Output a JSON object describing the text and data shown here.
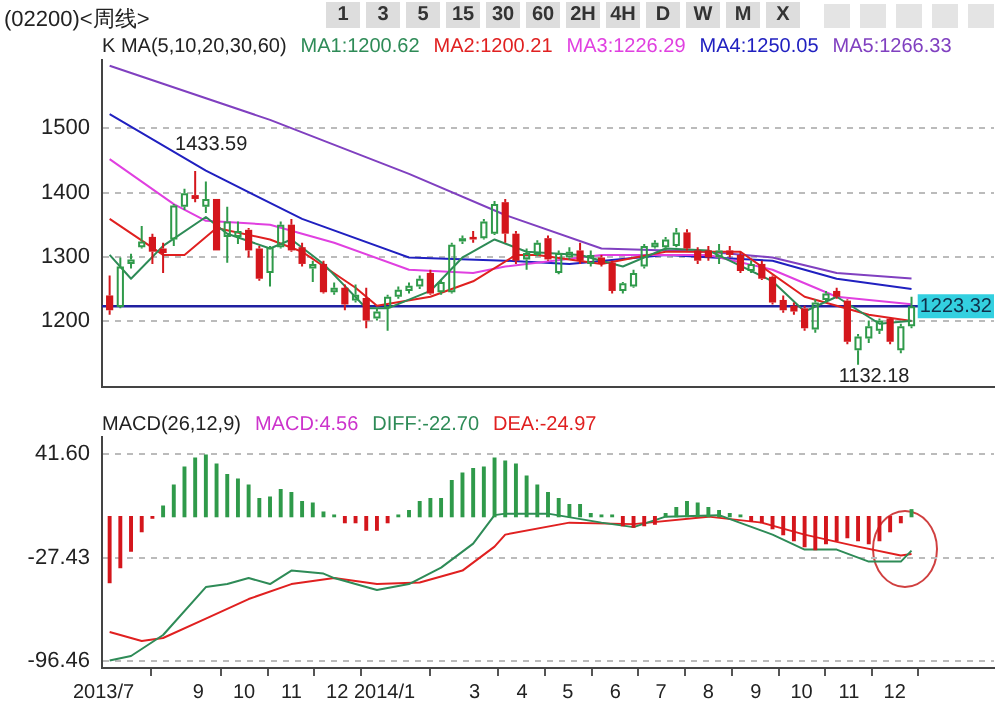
{
  "chart_data": [
    {
      "type": "candlestick",
      "title": "(02200)<周线>",
      "legend_title": "K MA(5,10,20,30,60)",
      "legend": "top",
      "grid": "y",
      "tick_labels": "y",
      "annotations": [
        "1",
        "3",
        "5",
        "15",
        "30",
        "60",
        "2H",
        "4H",
        "D",
        "W",
        "M",
        "X",
        {
          "text": "1433.59",
          "x": "2013-08-30",
          "y": 1433.59
        },
        {
          "text": "1132.18",
          "x": "2014-11-07",
          "y": 1132.18
        }
      ],
      "xlim": [
        "2013-06-30",
        "2015-02-04"
      ],
      "ylim": [
        1098,
        1606
      ],
      "yticks": [
        1200,
        1300,
        1400,
        1500
      ],
      "ref_lines": [
        {
          "axis": "y",
          "value": 1223.32,
          "label": "1223.32",
          "color": "#2020a0"
        }
      ],
      "x": [
        "2013-07-05",
        "2013-07-12",
        "2013-07-19",
        "2013-07-26",
        "2013-08-02",
        "2013-08-09",
        "2013-08-16",
        "2013-08-23",
        "2013-08-30",
        "2013-09-06",
        "2013-09-13",
        "2013-09-20",
        "2013-09-27",
        "2013-10-04",
        "2013-10-11",
        "2013-10-18",
        "2013-10-25",
        "2013-11-01",
        "2013-11-08",
        "2013-11-15",
        "2013-11-22",
        "2013-11-29",
        "2013-12-06",
        "2013-12-13",
        "2013-12-20",
        "2013-12-27",
        "2014-01-03",
        "2014-01-10",
        "2014-01-17",
        "2014-01-24",
        "2014-01-31",
        "2014-02-07",
        "2014-02-14",
        "2014-02-21",
        "2014-02-28",
        "2014-03-07",
        "2014-03-14",
        "2014-03-21",
        "2014-03-28",
        "2014-04-04",
        "2014-04-11",
        "2014-04-18",
        "2014-04-25",
        "2014-05-02",
        "2014-05-09",
        "2014-05-16",
        "2014-05-23",
        "2014-05-30",
        "2014-06-06",
        "2014-06-13",
        "2014-06-20",
        "2014-06-27",
        "2014-07-04",
        "2014-07-11",
        "2014-07-18",
        "2014-07-25",
        "2014-08-01",
        "2014-08-08",
        "2014-08-15",
        "2014-08-22",
        "2014-08-29",
        "2014-09-05",
        "2014-09-12",
        "2014-09-19",
        "2014-09-26",
        "2014-10-03",
        "2014-10-10",
        "2014-10-17",
        "2014-10-24",
        "2014-10-31",
        "2014-11-07",
        "2014-11-14",
        "2014-11-21",
        "2014-11-28",
        "2014-12-05",
        "2014-12-12"
      ],
      "ohlc": [
        [
          1240,
          1271,
          1210,
          1217
        ],
        [
          1222,
          1299,
          1220,
          1285
        ],
        [
          1289,
          1305,
          1282,
          1296
        ],
        [
          1315,
          1348,
          1313,
          1324
        ],
        [
          1331,
          1336,
          1289,
          1308
        ],
        [
          1313,
          1322,
          1275,
          1306
        ],
        [
          1327,
          1382,
          1317,
          1380
        ],
        [
          1378,
          1406,
          1373,
          1399
        ],
        [
          1396,
          1433.59,
          1385,
          1390
        ],
        [
          1378,
          1417,
          1368,
          1390
        ],
        [
          1390,
          1390,
          1310,
          1310
        ],
        [
          1331,
          1378,
          1291,
          1355
        ],
        [
          1331,
          1355,
          1320,
          1340
        ],
        [
          1342,
          1345,
          1299,
          1310
        ],
        [
          1313,
          1317,
          1263,
          1266
        ],
        [
          1275,
          1317,
          1254,
          1315
        ],
        [
          1315,
          1355,
          1313,
          1350
        ],
        [
          1350,
          1359,
          1308,
          1310
        ],
        [
          1315,
          1322,
          1285,
          1289
        ],
        [
          1282,
          1294,
          1261,
          1289
        ],
        [
          1289,
          1294,
          1243,
          1245
        ],
        [
          1245,
          1260,
          1241,
          1252
        ],
        [
          1252,
          1257,
          1217,
          1226
        ],
        [
          1232,
          1257,
          1229,
          1241
        ],
        [
          1236,
          1252,
          1189,
          1201
        ],
        [
          1204,
          1220,
          1201,
          1215
        ],
        [
          1220,
          1241,
          1185,
          1238
        ],
        [
          1238,
          1254,
          1235,
          1249
        ],
        [
          1247,
          1260,
          1243,
          1255
        ],
        [
          1254,
          1271,
          1250,
          1266
        ],
        [
          1275,
          1280,
          1241,
          1243
        ],
        [
          1245,
          1264,
          1241,
          1261
        ],
        [
          1245,
          1322,
          1243,
          1319
        ],
        [
          1324,
          1333,
          1320,
          1329
        ],
        [
          1331,
          1340,
          1322,
          1327
        ],
        [
          1329,
          1359,
          1327,
          1355
        ],
        [
          1336,
          1387,
          1334,
          1382
        ],
        [
          1385,
          1390,
          1322,
          1336
        ],
        [
          1336,
          1340,
          1289,
          1294
        ],
        [
          1296,
          1313,
          1280,
          1306
        ],
        [
          1303,
          1326,
          1301,
          1322
        ],
        [
          1329,
          1333,
          1294,
          1296
        ],
        [
          1275,
          1310,
          1273,
          1306
        ],
        [
          1299,
          1315,
          1296,
          1308
        ],
        [
          1310,
          1322,
          1289,
          1294
        ],
        [
          1289,
          1310,
          1285,
          1303
        ],
        [
          1299,
          1303,
          1285,
          1289
        ],
        [
          1291,
          1294,
          1243,
          1247
        ],
        [
          1247,
          1261,
          1243,
          1259
        ],
        [
          1254,
          1280,
          1252,
          1275
        ],
        [
          1285,
          1320,
          1282,
          1317
        ],
        [
          1315,
          1326,
          1313,
          1322
        ],
        [
          1315,
          1331,
          1310,
          1327
        ],
        [
          1317,
          1345,
          1315,
          1338
        ],
        [
          1338,
          1343,
          1310,
          1313
        ],
        [
          1310,
          1315,
          1289,
          1294
        ],
        [
          1310,
          1317,
          1294,
          1299
        ],
        [
          1299,
          1320,
          1289,
          1310
        ],
        [
          1310,
          1317,
          1299,
          1303
        ],
        [
          1303,
          1308,
          1275,
          1278
        ],
        [
          1278,
          1294,
          1275,
          1289
        ],
        [
          1289,
          1294,
          1264,
          1266
        ],
        [
          1269,
          1271,
          1226,
          1229
        ],
        [
          1233,
          1240,
          1213,
          1217
        ],
        [
          1224,
          1229,
          1210,
          1215
        ],
        [
          1220,
          1224,
          1185,
          1189
        ],
        [
          1187,
          1234,
          1182,
          1229
        ],
        [
          1233,
          1247,
          1229,
          1243
        ],
        [
          1247,
          1252,
          1235,
          1238
        ],
        [
          1232,
          1234,
          1164,
          1168
        ],
        [
          1155,
          1180,
          1132.18,
          1176
        ],
        [
          1173,
          1201,
          1166,
          1192
        ],
        [
          1185,
          1204,
          1180,
          1201
        ],
        [
          1204,
          1206,
          1164,
          1168
        ],
        [
          1155,
          1196,
          1150,
          1192
        ],
        [
          1192,
          1238,
          1189,
          1223.32
        ]
      ],
      "colors": [
        "#d4161c",
        "#2f9a4a",
        "#2f9a4a",
        "#2f9a4a",
        "#d4161c",
        "#d4161c",
        "#2f9a4a",
        "#2f9a4a",
        "#d4161c",
        "#2f9a4a",
        "#d4161c",
        "#2f9a4a",
        "#2f9a4a",
        "#d4161c",
        "#d4161c",
        "#2f9a4a",
        "#2f9a4a",
        "#d4161c",
        "#d4161c",
        "#2f9a4a",
        "#d4161c",
        "#2f9a4a",
        "#d4161c",
        "#2f9a4a",
        "#d4161c",
        "#2f9a4a",
        "#2f9a4a",
        "#2f9a4a",
        "#2f9a4a",
        "#2f9a4a",
        "#d4161c",
        "#2f9a4a",
        "#2f9a4a",
        "#2f9a4a",
        "#d4161c",
        "#2f9a4a",
        "#2f9a4a",
        "#d4161c",
        "#d4161c",
        "#2f9a4a",
        "#2f9a4a",
        "#d4161c",
        "#2f9a4a",
        "#2f9a4a",
        "#d4161c",
        "#2f9a4a",
        "#d4161c",
        "#d4161c",
        "#2f9a4a",
        "#2f9a4a",
        "#2f9a4a",
        "#2f9a4a",
        "#2f9a4a",
        "#2f9a4a",
        "#d4161c",
        "#d4161c",
        "#d4161c",
        "#2f9a4a",
        "#d4161c",
        "#d4161c",
        "#2f9a4a",
        "#d4161c",
        "#d4161c",
        "#d4161c",
        "#d4161c",
        "#d4161c",
        "#2f9a4a",
        "#2f9a4a",
        "#d4161c",
        "#d4161c",
        "#2f9a4a",
        "#2f9a4a",
        "#2f9a4a",
        "#d4161c",
        "#2f9a4a",
        "#2f9a4a"
      ],
      "series": [
        {
          "name": "MA1:1200.62",
          "type": "line",
          "color": "#2e8b57",
          "x": [
            "2013-07-05",
            "2013-07-19",
            "2013-08-09",
            "2013-09-06",
            "2013-09-20",
            "2013-10-18",
            "2013-11-01",
            "2013-11-22",
            "2013-12-20",
            "2014-01-03",
            "2014-01-31",
            "2014-02-21",
            "2014-03-14",
            "2014-04-04",
            "2014-05-09",
            "2014-06-06",
            "2014-07-04",
            "2014-08-01",
            "2014-09-12",
            "2014-10-03",
            "2014-10-24",
            "2014-11-21",
            "2014-12-12"
          ],
          "values": [
            1303,
            1266,
            1317,
            1362,
            1336,
            1313,
            1327,
            1289,
            1220,
            1220,
            1247,
            1299,
            1327,
            1308,
            1303,
            1285,
            1313,
            1310,
            1262,
            1215,
            1238,
            1196,
            1200.62
          ]
        },
        {
          "name": "MA2:1200.21",
          "type": "line",
          "color": "#e02020",
          "x": [
            "2013-07-05",
            "2013-08-09",
            "2013-08-23",
            "2013-09-13",
            "2013-10-18",
            "2013-11-08",
            "2013-12-13",
            "2013-12-27",
            "2014-01-31",
            "2014-02-28",
            "2014-03-28",
            "2014-04-11",
            "2014-05-23",
            "2014-07-04",
            "2014-08-22",
            "2014-10-03",
            "2014-11-14",
            "2014-12-12"
          ],
          "values": [
            1359,
            1303,
            1303,
            1345,
            1327,
            1308,
            1252,
            1224,
            1238,
            1262,
            1303,
            1303,
            1289,
            1308,
            1308,
            1238,
            1210,
            1200.21
          ]
        },
        {
          "name": "MA3:1226.29",
          "type": "line",
          "color": "#e040e0",
          "x": [
            "2013-07-05",
            "2013-08-16",
            "2013-09-06",
            "2013-10-18",
            "2013-11-29",
            "2014-01-17",
            "2014-02-28",
            "2014-03-21",
            "2014-05-23",
            "2014-08-01",
            "2014-09-12",
            "2014-10-24",
            "2014-12-12"
          ],
          "values": [
            1452,
            1382,
            1356,
            1350,
            1322,
            1280,
            1275,
            1285,
            1303,
            1303,
            1280,
            1238,
            1226.29
          ]
        },
        {
          "name": "MA4:1250.05",
          "type": "line",
          "color": "#2020c0",
          "x": [
            "2013-07-05",
            "2013-09-06",
            "2013-11-08",
            "2014-01-17",
            "2014-03-21",
            "2014-05-02",
            "2014-07-04",
            "2014-09-12",
            "2014-10-24",
            "2014-12-12"
          ],
          "values": [
            1522,
            1434,
            1359,
            1299,
            1294,
            1289,
            1303,
            1294,
            1266,
            1250.05
          ]
        },
        {
          "name": "MA5:1266.33",
          "type": "line",
          "color": "#8040c0",
          "x": [
            "2013-07-05",
            "2013-10-18",
            "2014-01-17",
            "2014-03-21",
            "2014-05-23",
            "2014-08-01",
            "2014-09-12",
            "2014-10-24",
            "2014-12-12"
          ],
          "values": [
            1597,
            1513,
            1429,
            1365,
            1313,
            1308,
            1299,
            1275,
            1266.33
          ]
        }
      ]
    },
    {
      "type": "bar",
      "legend_title": "MACD(26,12,9)",
      "legend": "top left",
      "grid": "y",
      "xlim": [
        "2013-06-30",
        "2015-02-04"
      ],
      "ylim": [
        -101,
        53
      ],
      "yticks": [
        {
          "value": 41.6,
          "label": "41.60"
        },
        {
          "value": -27.43,
          "label": "-27.43"
        },
        {
          "value": -96.46,
          "label": "-96.46"
        }
      ],
      "xticks": [
        {
          "value": "2013-07-01",
          "label": "2013/7"
        },
        {
          "value": "2013-09-01",
          "label": "9"
        },
        {
          "value": "2013-10-01",
          "label": "10"
        },
        {
          "value": "2013-11-01",
          "label": "11"
        },
        {
          "value": "2013-12-01",
          "label": "12"
        },
        {
          "value": "2014-01-01",
          "label": "2014/1"
        },
        {
          "value": "2014-03-01",
          "label": "3"
        },
        {
          "value": "2014-04-01",
          "label": "4"
        },
        {
          "value": "2014-05-01",
          "label": "5"
        },
        {
          "value": "2014-06-01",
          "label": "6"
        },
        {
          "value": "2014-07-01",
          "label": "7"
        },
        {
          "value": "2014-08-01",
          "label": "8"
        },
        {
          "value": "2014-09-01",
          "label": "9"
        },
        {
          "value": "2014-10-01",
          "label": "10"
        },
        {
          "value": "2014-11-01",
          "label": "11"
        },
        {
          "value": "2014-12-01",
          "label": "12"
        }
      ],
      "x": [
        "2013-07-05",
        "2013-07-12",
        "2013-07-19",
        "2013-07-26",
        "2013-08-02",
        "2013-08-09",
        "2013-08-16",
        "2013-08-23",
        "2013-08-30",
        "2013-09-06",
        "2013-09-13",
        "2013-09-20",
        "2013-09-27",
        "2013-10-04",
        "2013-10-11",
        "2013-10-18",
        "2013-10-25",
        "2013-11-01",
        "2013-11-08",
        "2013-11-15",
        "2013-11-22",
        "2013-11-29",
        "2013-12-06",
        "2013-12-13",
        "2013-12-20",
        "2013-12-27",
        "2014-01-03",
        "2014-01-10",
        "2014-01-17",
        "2014-01-24",
        "2014-01-31",
        "2014-02-07",
        "2014-02-14",
        "2014-02-21",
        "2014-02-28",
        "2014-03-07",
        "2014-03-14",
        "2014-03-21",
        "2014-03-28",
        "2014-04-04",
        "2014-04-11",
        "2014-04-18",
        "2014-04-25",
        "2014-05-02",
        "2014-05-09",
        "2014-05-16",
        "2014-05-23",
        "2014-05-30",
        "2014-06-06",
        "2014-06-13",
        "2014-06-20",
        "2014-06-27",
        "2014-07-04",
        "2014-07-11",
        "2014-07-18",
        "2014-07-25",
        "2014-08-01",
        "2014-08-08",
        "2014-08-15",
        "2014-08-22",
        "2014-08-29",
        "2014-09-05",
        "2014-09-12",
        "2014-09-19",
        "2014-09-26",
        "2014-10-03",
        "2014-10-10",
        "2014-10-17",
        "2014-10-24",
        "2014-10-31",
        "2014-11-07",
        "2014-11-14",
        "2014-11-21",
        "2014-11-28",
        "2014-12-05",
        "2014-12-12"
      ],
      "series": [
        {
          "name": "MACD:4.56",
          "color": "#cc33cc",
          "values": [
            -44,
            -34,
            -23,
            -10,
            -1,
            7,
            21,
            33,
            39,
            41,
            35,
            28,
            25,
            21,
            12,
            13,
            18,
            16,
            10,
            9,
            3,
            1,
            -4,
            -4,
            -9,
            -9,
            -4,
            1,
            4,
            10,
            12,
            12,
            24,
            29,
            32,
            33,
            39,
            37,
            35,
            27,
            21,
            16,
            12,
            8,
            8,
            2,
            1,
            1,
            -6,
            -7,
            -6,
            -5,
            2,
            6,
            10,
            9,
            6,
            4,
            2,
            1,
            -3,
            -4,
            -8,
            -12,
            -16,
            -20,
            -22,
            -18,
            -16,
            -14,
            -16,
            -18,
            -16,
            -10,
            -4,
            4.56
          ],
          "colors": [
            "#d4161c",
            "#d4161c",
            "#d4161c",
            "#d4161c",
            "#d4161c",
            "#2f9a4a",
            "#2f9a4a",
            "#2f9a4a",
            "#2f9a4a",
            "#2f9a4a",
            "#2f9a4a",
            "#2f9a4a",
            "#2f9a4a",
            "#2f9a4a",
            "#2f9a4a",
            "#2f9a4a",
            "#2f9a4a",
            "#2f9a4a",
            "#2f9a4a",
            "#2f9a4a",
            "#2f9a4a",
            "#2f9a4a",
            "#d4161c",
            "#d4161c",
            "#d4161c",
            "#d4161c",
            "#d4161c",
            "#2f9a4a",
            "#2f9a4a",
            "#2f9a4a",
            "#2f9a4a",
            "#2f9a4a",
            "#2f9a4a",
            "#2f9a4a",
            "#2f9a4a",
            "#2f9a4a",
            "#2f9a4a",
            "#2f9a4a",
            "#2f9a4a",
            "#2f9a4a",
            "#2f9a4a",
            "#2f9a4a",
            "#2f9a4a",
            "#2f9a4a",
            "#2f9a4a",
            "#2f9a4a",
            "#2f9a4a",
            "#2f9a4a",
            "#d4161c",
            "#d4161c",
            "#d4161c",
            "#d4161c",
            "#2f9a4a",
            "#2f9a4a",
            "#2f9a4a",
            "#2f9a4a",
            "#2f9a4a",
            "#2f9a4a",
            "#2f9a4a",
            "#2f9a4a",
            "#d4161c",
            "#d4161c",
            "#d4161c",
            "#d4161c",
            "#d4161c",
            "#d4161c",
            "#d4161c",
            "#d4161c",
            "#d4161c",
            "#d4161c",
            "#d4161c",
            "#d4161c",
            "#d4161c",
            "#d4161c",
            "#d4161c",
            "#2f9a4a"
          ]
        },
        {
          "name": "DIFF:-22.70",
          "type": "line",
          "color": "#2e8b57",
          "x": [
            "2013-07-05",
            "2013-07-19",
            "2013-08-09",
            "2013-09-06",
            "2013-09-20",
            "2013-10-04",
            "2013-10-18",
            "2013-11-01",
            "2013-11-22",
            "2013-11-29",
            "2013-12-27",
            "2014-01-17",
            "2014-02-07",
            "2014-02-28",
            "2014-03-14",
            "2014-03-21",
            "2014-04-18",
            "2014-05-23",
            "2014-06-13",
            "2014-07-04",
            "2014-08-08",
            "2014-09-12",
            "2014-10-03",
            "2014-10-24",
            "2014-11-14",
            "2014-12-05",
            "2014-12-12"
          ],
          "values": [
            -96,
            -93,
            -79,
            -47,
            -45,
            -41,
            -45,
            -36,
            -38,
            -41,
            -49,
            -45,
            -34,
            -18,
            1,
            2,
            2,
            -4,
            -7,
            0,
            1,
            -12,
            -22,
            -22,
            -30,
            -30,
            -22.7
          ]
        },
        {
          "name": "DEA:-24.97",
          "type": "line",
          "color": "#e02020",
          "x": [
            "2013-07-05",
            "2013-07-26",
            "2013-08-09",
            "2013-09-06",
            "2013-10-04",
            "2013-11-01",
            "2013-11-29",
            "2013-12-27",
            "2014-01-24",
            "2014-02-21",
            "2014-03-14",
            "2014-03-21",
            "2014-05-02",
            "2014-06-13",
            "2014-08-01",
            "2014-09-05",
            "2014-10-03",
            "2014-11-07",
            "2014-12-05",
            "2014-12-12"
          ],
          "values": [
            -77,
            -83,
            -81,
            -68,
            -55,
            -45,
            -41,
            -45,
            -44,
            -36,
            -20,
            -12,
            -4,
            -5,
            0,
            -4,
            -12,
            -20,
            -26,
            -24.97
          ]
        }
      ]
    }
  ]
}
